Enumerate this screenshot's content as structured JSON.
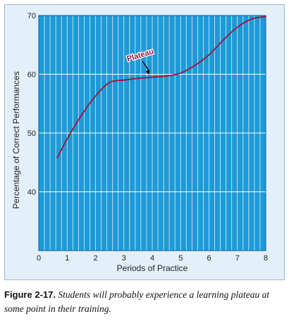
{
  "chart_data": {
    "type": "line",
    "xlabel": "Periods of Practice",
    "ylabel": "Percentage of Correct Performances",
    "xlim": [
      0,
      8
    ],
    "ylim": [
      30,
      70
    ],
    "x_ticks": [
      "0",
      "1",
      "2",
      "3",
      "4",
      "5",
      "6",
      "7",
      "8"
    ],
    "y_ticks": [
      "40",
      "50",
      "60",
      "70"
    ],
    "grid": true,
    "series": [
      {
        "x": [
          0.65,
          1.0,
          1.5,
          2.0,
          2.5,
          3.0,
          3.5,
          4.0,
          4.5,
          5.0,
          5.5,
          6.0,
          6.5,
          7.0,
          7.5,
          8.0
        ],
        "y": [
          45.8,
          49.0,
          53.0,
          56.3,
          58.6,
          59.0,
          59.3,
          59.5,
          59.7,
          60.2,
          61.5,
          63.3,
          65.8,
          68.0,
          69.4,
          69.8
        ]
      }
    ],
    "annotations": [
      {
        "text": "Plateau",
        "x": 3.9,
        "y": 59.5
      }
    ],
    "colors": {
      "plot_background": "#1e9ad6",
      "grid": "#ffffff",
      "line": "#a0123a",
      "panel": "#e3eff9"
    }
  },
  "caption": {
    "label": "Figure 2-17.",
    "text": "Students will probably experience a learning plateau at some point in their training."
  }
}
